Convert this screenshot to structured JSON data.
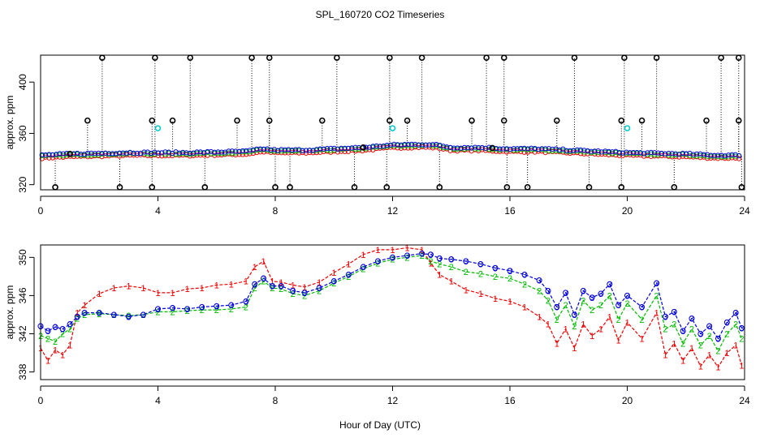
{
  "chart_data": {
    "type": "scatter",
    "title": "SPL_160720  CO2 Timeseries",
    "xlabel": "Hour of Day (UTC)",
    "colors": {
      "red": "#ee0000",
      "green": "#00bb00",
      "blue": "#0000dd",
      "cyan": "#00cccc",
      "black": "#000000"
    },
    "panels": [
      {
        "ylabel": "approx. ppm",
        "xlim": [
          0,
          24
        ],
        "ylim": [
          316,
          421
        ],
        "xticks": [
          0,
          4,
          8,
          12,
          16,
          20,
          24
        ],
        "yticks": [
          320,
          360,
          400
        ],
        "outliers_low": [
          0.5,
          2.7,
          3.8,
          5.6,
          8.0,
          8.5,
          10.7,
          11.8,
          13.6,
          15.9,
          16.6,
          18.7,
          19.8,
          21.6,
          23.9
        ],
        "outliers_high": [
          2.1,
          3.9,
          5.1,
          7.2,
          7.8,
          10.1,
          11.9,
          13.0,
          15.2,
          15.8,
          18.2,
          19.9,
          21.0,
          23.2,
          23.8
        ],
        "outliers_mid": [
          1.6,
          3.8,
          4.5,
          6.7,
          7.8,
          9.6,
          11.9,
          12.5,
          14.7,
          15.8,
          17.6,
          19.8,
          20.5,
          22.7,
          23.8
        ],
        "cyan_points": [
          {
            "x": 4.0,
            "y": 364
          },
          {
            "x": 12.0,
            "y": 364
          },
          {
            "x": 20.0,
            "y": 364
          }
        ],
        "series_profile": {
          "x": [
            0,
            1,
            2,
            3,
            4,
            5,
            6,
            7,
            7.6,
            8,
            9,
            10,
            11,
            12,
            13,
            13.5,
            14,
            15,
            16,
            17,
            18,
            19,
            20,
            21,
            22,
            23,
            24
          ],
          "y": [
            342,
            343,
            343.5,
            344,
            344,
            344,
            344.5,
            345,
            347,
            346,
            346,
            347,
            348,
            350,
            350.5,
            350,
            348,
            348,
            347,
            347,
            346,
            345,
            344,
            343.5,
            343,
            342,
            342
          ]
        }
      },
      {
        "ylabel": "approx. ppm",
        "xlim": [
          0,
          24
        ],
        "ylim": [
          337.2,
          351.3
        ],
        "xticks": [
          0,
          4,
          8,
          12,
          16,
          20,
          24
        ],
        "yticks": [
          338,
          342,
          346,
          350
        ],
        "markers": [
          "1",
          "2",
          "3"
        ],
        "series": [
          {
            "name": "1",
            "x": [
              0,
              0.25,
              0.5,
              0.75,
              1,
              1.25,
              1.5,
              2,
              2.5,
              3,
              3.5,
              4,
              4.5,
              5,
              5.5,
              6,
              6.5,
              7,
              7.3,
              7.6,
              7.9,
              8.2,
              8.6,
              9,
              9.5,
              10,
              10.5,
              11,
              11.5,
              12,
              12.5,
              13,
              13.3,
              13.6,
              14,
              14.5,
              15,
              15.5,
              16,
              16.5,
              17,
              17.3,
              17.6,
              17.9,
              18.2,
              18.5,
              18.8,
              19.1,
              19.4,
              19.7,
              20,
              20.5,
              21,
              21.3,
              21.6,
              21.9,
              22.2,
              22.5,
              22.8,
              23.1,
              23.4,
              23.7,
              23.9
            ],
            "y": [
              340.5,
              339.2,
              340.3,
              339.8,
              340.8,
              344.2,
              345.0,
              346.2,
              346.8,
              347.0,
              346.8,
              346.3,
              346.3,
              346.7,
              346.8,
              347.1,
              347.2,
              347.5,
              349.0,
              349.6,
              347.5,
              347.4,
              347.1,
              346.9,
              347.4,
              348.4,
              349.3,
              350.3,
              350.8,
              350.8,
              351.0,
              350.8,
              349.4,
              348.2,
              347.5,
              346.6,
              346.2,
              345.7,
              345.4,
              344.8,
              343.8,
              343.0,
              341.0,
              342.5,
              340.5,
              343.0,
              341.8,
              342.5,
              343.8,
              341.3,
              343.2,
              341.5,
              344.2,
              339.8,
              341.0,
              339.2,
              340.5,
              338.6,
              339.8,
              338.5,
              340.0,
              340.8,
              338.7
            ]
          },
          {
            "name": "2",
            "x": [
              0,
              0.25,
              0.5,
              0.75,
              1,
              1.25,
              1.5,
              2,
              2.5,
              3,
              3.5,
              4,
              4.5,
              5,
              5.5,
              6,
              6.5,
              7,
              7.3,
              7.6,
              7.9,
              8.2,
              8.6,
              9,
              9.5,
              10,
              10.5,
              11,
              11.5,
              12,
              12.5,
              13,
              13.3,
              13.6,
              14,
              14.5,
              15,
              15.5,
              16,
              16.5,
              17,
              17.3,
              17.6,
              17.9,
              18.2,
              18.5,
              18.8,
              19.1,
              19.4,
              19.7,
              20,
              20.5,
              21,
              21.3,
              21.6,
              21.9,
              22.2,
              22.5,
              22.8,
              23.1,
              23.4,
              23.7,
              23.9
            ],
            "y": [
              341.8,
              341.5,
              341.2,
              342.0,
              342.5,
              343.6,
              344.0,
              344.1,
              344.0,
              343.9,
              344.0,
              344.3,
              344.3,
              344.4,
              344.5,
              344.5,
              344.6,
              344.8,
              346.8,
              347.5,
              346.8,
              346.7,
              346.2,
              346.0,
              346.5,
              347.3,
              348.0,
              348.8,
              349.4,
              349.8,
              350.0,
              350.2,
              349.6,
              349.3,
              349.0,
              348.5,
              348.3,
              348.0,
              347.8,
              347.2,
              346.5,
              345.5,
              343.5,
              345.0,
              342.8,
              345.5,
              344.5,
              345.0,
              346.0,
              343.5,
              345.2,
              343.5,
              346.0,
              342.5,
              343.0,
              341.0,
              342.5,
              340.8,
              341.8,
              340.2,
              342.0,
              343.0,
              341.5
            ]
          },
          {
            "name": "3",
            "x": [
              0,
              0.25,
              0.5,
              0.75,
              1,
              1.25,
              1.5,
              2,
              2.5,
              3,
              3.5,
              4,
              4.5,
              5,
              5.5,
              6,
              6.5,
              7,
              7.3,
              7.6,
              7.9,
              8.2,
              8.6,
              9,
              9.5,
              10,
              10.5,
              11,
              11.5,
              12,
              12.5,
              13,
              13.3,
              13.6,
              14,
              14.5,
              15,
              15.5,
              16,
              16.5,
              17,
              17.3,
              17.6,
              17.9,
              18.2,
              18.5,
              18.8,
              19.1,
              19.4,
              19.7,
              20,
              20.5,
              21,
              21.3,
              21.6,
              21.9,
              22.2,
              22.5,
              22.8,
              23.1,
              23.4,
              23.7,
              23.9
            ],
            "y": [
              342.8,
              342.3,
              342.7,
              342.5,
              343.0,
              343.8,
              344.2,
              344.2,
              344.0,
              343.8,
              344.0,
              344.6,
              344.7,
              344.6,
              344.8,
              344.9,
              345.0,
              345.4,
              347.2,
              347.8,
              347.0,
              347.0,
              346.5,
              346.3,
              346.8,
              347.5,
              348.2,
              349.0,
              349.6,
              350.0,
              350.2,
              350.4,
              350.3,
              349.9,
              349.8,
              349.6,
              349.3,
              348.9,
              348.6,
              348.2,
              347.6,
              346.5,
              344.8,
              346.3,
              344.0,
              346.5,
              345.8,
              346.2,
              347.2,
              345.0,
              346.0,
              344.8,
              347.3,
              343.8,
              344.3,
              342.3,
              343.6,
              342.0,
              342.8,
              341.5,
              343.2,
              344.2,
              342.6
            ]
          }
        ]
      }
    ]
  }
}
